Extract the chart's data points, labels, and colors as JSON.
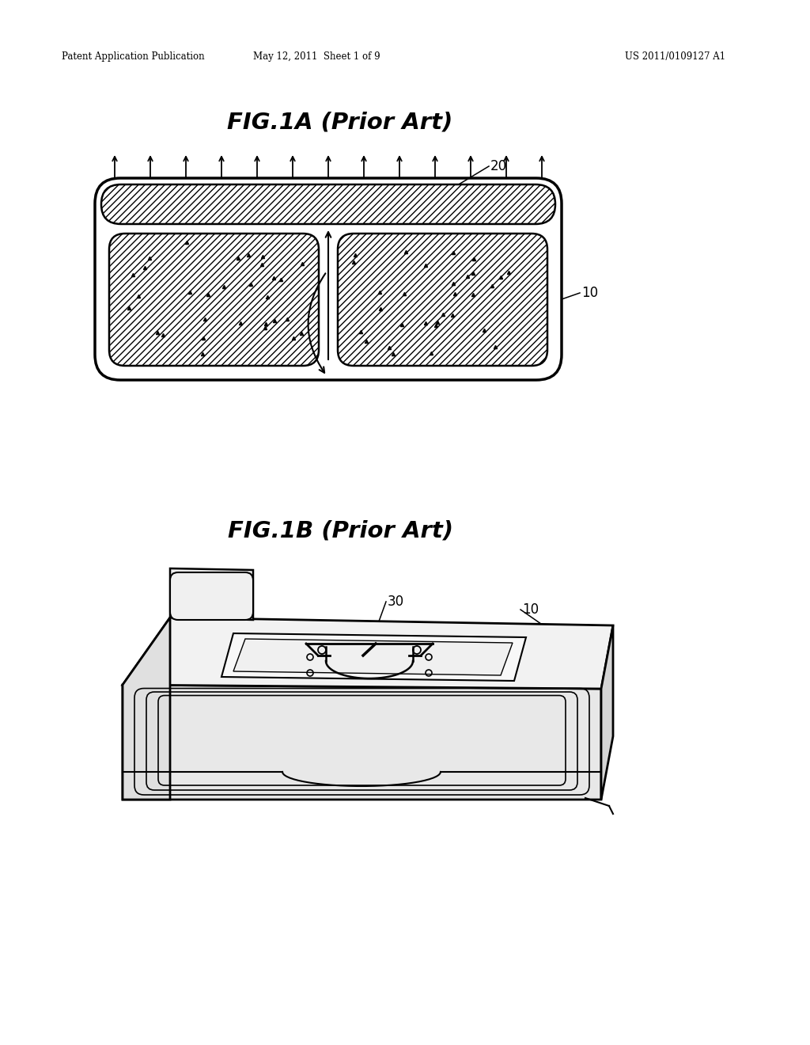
{
  "bg_color": "#ffffff",
  "header_left": "Patent Application Publication",
  "header_mid": "May 12, 2011  Sheet 1 of 9",
  "header_right": "US 2011/0109127 A1",
  "fig1a_title": "FIG.1A (Prior Art)",
  "fig1b_title": "FIG.1B (Prior Art)",
  "label_20": "20",
  "label_10_top": "10",
  "label_30": "30",
  "label_10_bot": "10"
}
